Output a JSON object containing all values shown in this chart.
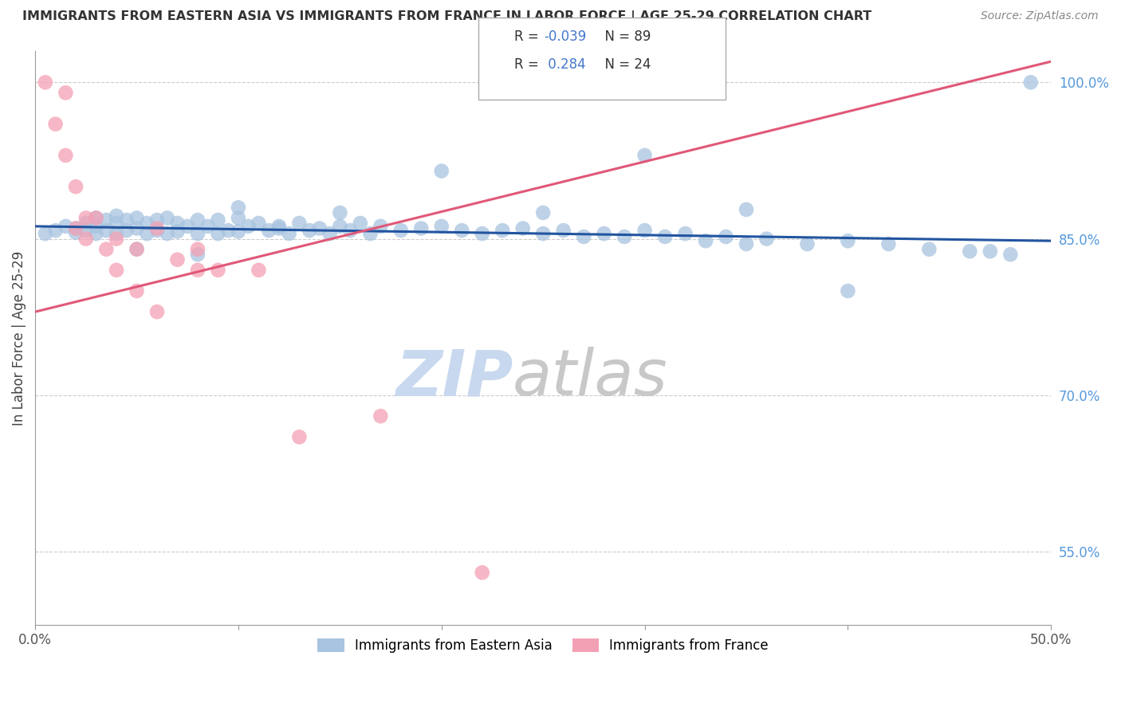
{
  "title": "IMMIGRANTS FROM EASTERN ASIA VS IMMIGRANTS FROM FRANCE IN LABOR FORCE | AGE 25-29 CORRELATION CHART",
  "source": "Source: ZipAtlas.com",
  "ylabel": "In Labor Force | Age 25-29",
  "xlim": [
    0.0,
    0.5
  ],
  "ylim": [
    0.48,
    1.03
  ],
  "xtick_vals": [
    0.0,
    0.1,
    0.2,
    0.3,
    0.4,
    0.5
  ],
  "xtick_labels": [
    "0.0%",
    "",
    "",
    "",
    "",
    "50.0%"
  ],
  "ytick_right_values": [
    1.0,
    0.85,
    0.7,
    0.55
  ],
  "ytick_right_labels": [
    "100.0%",
    "85.0%",
    "70.0%",
    "55.0%"
  ],
  "blue_R": -0.039,
  "blue_N": 89,
  "pink_R": 0.284,
  "pink_N": 24,
  "blue_color": "#a8c4e0",
  "pink_color": "#f4a0b4",
  "blue_line_color": "#2255a0",
  "pink_line_color": "#e05878",
  "legend_label_blue": "Immigrants from Eastern Asia",
  "legend_label_pink": "Immigrants from France",
  "watermark": "ZIPatlas",
  "watermark_blue": "#c8d8ee",
  "watermark_gray": "#c8c8c8",
  "background_color": "#ffffff",
  "blue_trend_y0": 0.862,
  "blue_trend_y1": 0.848,
  "pink_trend_y0": 0.78,
  "pink_trend_y1": 1.02,
  "blue_x": [
    0.005,
    0.01,
    0.015,
    0.02,
    0.02,
    0.025,
    0.025,
    0.03,
    0.03,
    0.03,
    0.035,
    0.035,
    0.04,
    0.04,
    0.04,
    0.045,
    0.045,
    0.05,
    0.05,
    0.055,
    0.055,
    0.06,
    0.06,
    0.065,
    0.065,
    0.07,
    0.07,
    0.075,
    0.08,
    0.08,
    0.085,
    0.09,
    0.09,
    0.095,
    0.1,
    0.1,
    0.105,
    0.11,
    0.115,
    0.12,
    0.125,
    0.13,
    0.135,
    0.14,
    0.145,
    0.15,
    0.155,
    0.16,
    0.165,
    0.17,
    0.18,
    0.19,
    0.2,
    0.21,
    0.22,
    0.23,
    0.24,
    0.25,
    0.26,
    0.27,
    0.28,
    0.29,
    0.3,
    0.31,
    0.32,
    0.33,
    0.34,
    0.35,
    0.36,
    0.38,
    0.4,
    0.42,
    0.44,
    0.46,
    0.47,
    0.48,
    0.49,
    0.2,
    0.3,
    0.4,
    0.35,
    0.25,
    0.15,
    0.1,
    0.05,
    0.08,
    0.12
  ],
  "blue_y": [
    0.855,
    0.858,
    0.862,
    0.86,
    0.856,
    0.865,
    0.858,
    0.87,
    0.862,
    0.855,
    0.868,
    0.858,
    0.872,
    0.865,
    0.855,
    0.868,
    0.858,
    0.87,
    0.86,
    0.865,
    0.855,
    0.868,
    0.858,
    0.87,
    0.855,
    0.865,
    0.857,
    0.862,
    0.868,
    0.855,
    0.862,
    0.868,
    0.855,
    0.858,
    0.87,
    0.857,
    0.862,
    0.865,
    0.858,
    0.862,
    0.855,
    0.865,
    0.858,
    0.86,
    0.855,
    0.862,
    0.858,
    0.865,
    0.855,
    0.862,
    0.858,
    0.86,
    0.862,
    0.858,
    0.855,
    0.858,
    0.86,
    0.855,
    0.858,
    0.852,
    0.855,
    0.852,
    0.858,
    0.852,
    0.855,
    0.848,
    0.852,
    0.845,
    0.85,
    0.845,
    0.848,
    0.845,
    0.84,
    0.838,
    0.838,
    0.835,
    1.0,
    0.915,
    0.93,
    0.8,
    0.878,
    0.875,
    0.875,
    0.88,
    0.84,
    0.835,
    0.86
  ],
  "pink_x": [
    0.005,
    0.01,
    0.015,
    0.015,
    0.02,
    0.02,
    0.025,
    0.025,
    0.03,
    0.035,
    0.04,
    0.05,
    0.06,
    0.07,
    0.08,
    0.09,
    0.11,
    0.13,
    0.17,
    0.22,
    0.04,
    0.05,
    0.06,
    0.08
  ],
  "pink_y": [
    1.0,
    0.96,
    0.93,
    0.99,
    0.9,
    0.86,
    0.87,
    0.85,
    0.87,
    0.84,
    0.85,
    0.84,
    0.86,
    0.83,
    0.84,
    0.82,
    0.82,
    0.66,
    0.68,
    0.53,
    0.82,
    0.8,
    0.78,
    0.82
  ]
}
